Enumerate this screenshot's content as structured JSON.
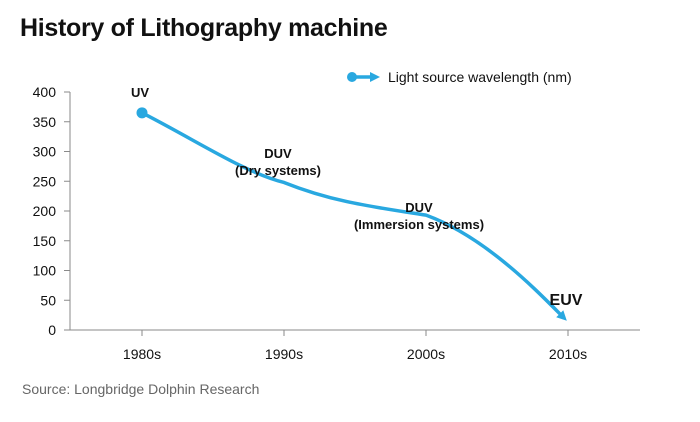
{
  "title": "History of Lithography machine",
  "source": "Source: Longbridge Dolphin Research",
  "colors": {
    "line": "#29A8E0",
    "axis": "#8a8a8a",
    "text": "#111111"
  },
  "chart_data": {
    "type": "line",
    "title": "History of Lithography machine",
    "categories": [
      "1980s",
      "1990s",
      "2000s",
      "2010s"
    ],
    "series": [
      {
        "name": "Light source wavelength (nm)",
        "values": [
          365,
          248,
          193,
          13.5
        ]
      }
    ],
    "point_labels": [
      [
        "UV"
      ],
      [
        "DUV",
        "(Dry systems)"
      ],
      [
        "DUV",
        "(Immersion systems)"
      ],
      [
        "EUV"
      ]
    ],
    "ylim": [
      0,
      400
    ],
    "yticks": [
      0,
      50,
      100,
      150,
      200,
      250,
      300,
      350,
      400
    ],
    "grid": false,
    "legend": "top-right"
  }
}
